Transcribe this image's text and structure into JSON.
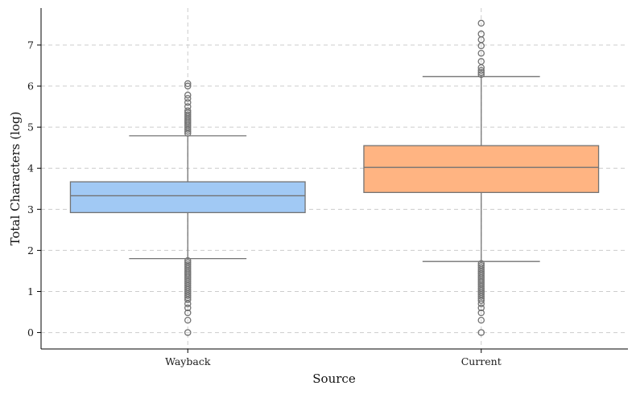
{
  "chart_data": {
    "type": "box",
    "title": "",
    "xlabel": "Source",
    "ylabel": "Total Characters (log)",
    "categories": [
      "Wayback",
      "Current"
    ],
    "ylim": [
      -0.4,
      7.9
    ],
    "yticks": [
      0,
      1,
      2,
      3,
      4,
      5,
      6,
      7
    ],
    "grid": true,
    "boxes": [
      {
        "name": "Wayback",
        "color": "#a1c9f4",
        "whisker_low": 1.8,
        "q1": 2.92,
        "median": 3.33,
        "q3": 3.67,
        "whisker_high": 4.79,
        "outliers_high": [
          4.85,
          4.9,
          4.95,
          5.0,
          5.05,
          5.1,
          5.15,
          5.2,
          5.25,
          5.3,
          5.35,
          5.4,
          5.5,
          5.6,
          5.7,
          5.78,
          6.0,
          6.06
        ],
        "outliers_low": [
          1.75,
          1.7,
          1.65,
          1.6,
          1.55,
          1.5,
          1.45,
          1.4,
          1.35,
          1.3,
          1.25,
          1.2,
          1.15,
          1.1,
          1.05,
          1.0,
          0.95,
          0.9,
          0.85,
          0.8,
          0.7,
          0.6,
          0.48,
          0.3,
          0.0
        ]
      },
      {
        "name": "Current",
        "color": "#ffb482",
        "whisker_low": 1.73,
        "q1": 3.41,
        "median": 4.02,
        "q3": 4.55,
        "whisker_high": 6.23,
        "outliers_high": [
          6.28,
          6.33,
          6.38,
          6.45,
          6.6,
          6.8,
          6.98,
          7.13,
          7.27,
          7.53
        ],
        "outliers_low": [
          1.68,
          1.63,
          1.58,
          1.53,
          1.48,
          1.43,
          1.38,
          1.33,
          1.28,
          1.23,
          1.18,
          1.13,
          1.08,
          1.03,
          0.98,
          0.93,
          0.88,
          0.83,
          0.78,
          0.7,
          0.6,
          0.48,
          0.3,
          0.0
        ]
      }
    ]
  },
  "style": {
    "line_color": "#737373",
    "grid_color": "#cccccc",
    "axis_color": "#000000"
  }
}
